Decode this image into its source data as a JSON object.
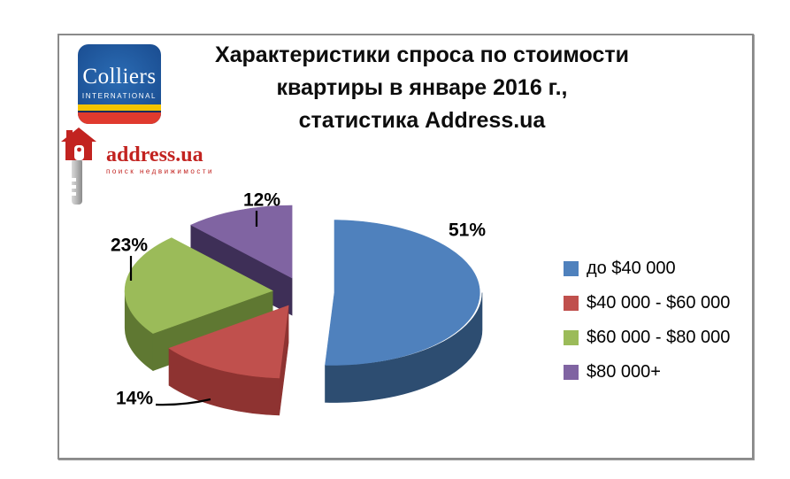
{
  "frame": {
    "border_color": "#8a8a8a",
    "background": "#ffffff"
  },
  "logos": {
    "colliers": {
      "name": "Colliers",
      "subtitle": "INTERNATIONAL",
      "navy": "#0b2c5e",
      "stripe_yellow": "#f3c400",
      "stripe_red": "#e03a2e"
    },
    "address": {
      "name": "address.ua",
      "subtitle": "поиск недвижимости",
      "brand_red": "#c22320"
    }
  },
  "title": {
    "lines": [
      "Характеристики спроса по стоимости",
      "квартиры в январе 2016 г.,",
      "статистика Address.ua"
    ]
  },
  "chart_data": {
    "type": "pie",
    "style": "3d-exploded",
    "title": "Характеристики спроса по стоимости квартиры в январе 2016 г., статистика Address.ua",
    "labels": [
      "до $40 000",
      "$40 000 - $60 000",
      "$60 000 - $80 000",
      "$80 000+"
    ],
    "values": [
      51,
      14,
      23,
      12
    ],
    "unit": "%",
    "data_labels": [
      "51%",
      "14%",
      "23%",
      "12%"
    ],
    "colors": [
      "#4f81bd",
      "#c0504d",
      "#9bbb59",
      "#8064a2"
    ],
    "side_colors": [
      "#2d4d71",
      "#8e3331",
      "#5f7832",
      "#3e2f57"
    ],
    "start_angle_deg": 0,
    "direction": "clockwise",
    "legend_position": "right"
  },
  "legend": {
    "items": [
      {
        "label": "до $40 000",
        "color": "#4f81bd"
      },
      {
        "label": "$40 000 - $60 000",
        "color": "#c0504d"
      },
      {
        "label": "$60 000 - $80 000",
        "color": "#9bbb59"
      },
      {
        "label": "$80 000+",
        "color": "#8064a2"
      }
    ]
  }
}
